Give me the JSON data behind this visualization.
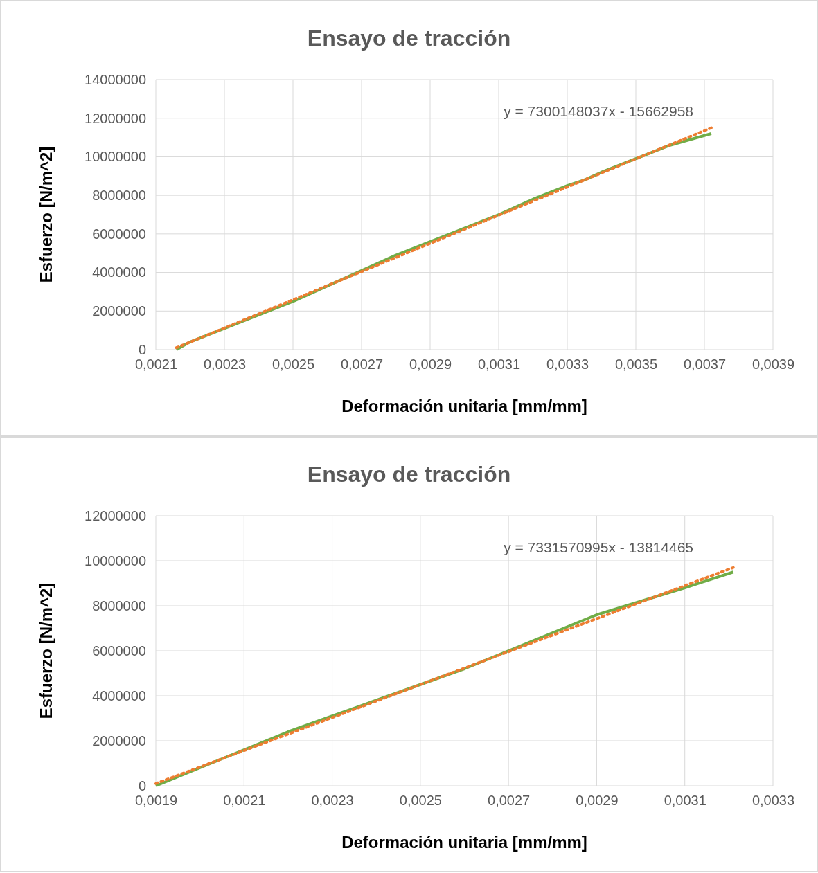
{
  "chart_data": [
    {
      "type": "line",
      "title": "Ensayo de tracción",
      "xlabel": "Deformación unitaria [mm/mm]",
      "ylabel": "Esfuerzo [N/m^2]",
      "xlim": [
        0.0021,
        0.0039
      ],
      "xticks": [
        {
          "value": 0.0021,
          "label": "0,0021"
        },
        {
          "value": 0.0023,
          "label": "0,0023"
        },
        {
          "value": 0.0025,
          "label": "0,0025"
        },
        {
          "value": 0.0027,
          "label": "0,0027"
        },
        {
          "value": 0.0029,
          "label": "0,0029"
        },
        {
          "value": 0.0031,
          "label": "0,0031"
        },
        {
          "value": 0.0033,
          "label": "0,0033"
        },
        {
          "value": 0.0035,
          "label": "0,0035"
        },
        {
          "value": 0.0037,
          "label": "0,0037"
        },
        {
          "value": 0.0039,
          "label": "0,0039"
        }
      ],
      "ylim": [
        0,
        14000000
      ],
      "yticks": [
        0,
        2000000,
        4000000,
        6000000,
        8000000,
        10000000,
        12000000,
        14000000
      ],
      "grid": true,
      "annotations": [
        "y = 7300148037x - 15662958"
      ],
      "series": [
        {
          "color": "#70ad47",
          "line_style": "solid",
          "x": [
            0.00216,
            0.0022,
            0.0023,
            0.0024,
            0.0025,
            0.0026,
            0.0027,
            0.0028,
            0.0029,
            0.003,
            0.0031,
            0.0032,
            0.0033,
            0.00335,
            0.0034,
            0.0035,
            0.0036,
            0.0037,
            0.00372
          ],
          "values": [
            0,
            400000,
            1100000,
            1800000,
            2500000,
            3300000,
            4100000,
            4900000,
            5600000,
            6300000,
            7000000,
            7800000,
            8500000,
            8800000,
            9200000,
            9900000,
            10600000,
            11100000,
            11200000
          ]
        },
        {
          "color": "#ed7d31",
          "line_style": "dotted",
          "x": [
            0.00216,
            0.00372
          ],
          "values": [
            100000,
            11500000
          ]
        }
      ]
    },
    {
      "type": "line",
      "title": "Ensayo de tracción",
      "xlabel": "Deformación unitaria [mm/mm]",
      "ylabel": "Esfuerzo [N/m^2]",
      "xlim": [
        0.0019,
        0.0033
      ],
      "xticks": [
        {
          "value": 0.0019,
          "label": "0,0019"
        },
        {
          "value": 0.0021,
          "label": "0,0021"
        },
        {
          "value": 0.0023,
          "label": "0,0023"
        },
        {
          "value": 0.0025,
          "label": "0,0025"
        },
        {
          "value": 0.0027,
          "label": "0,0027"
        },
        {
          "value": 0.0029,
          "label": "0,0029"
        },
        {
          "value": 0.0031,
          "label": "0,0031"
        },
        {
          "value": 0.0033,
          "label": "0,0033"
        }
      ],
      "ylim": [
        0,
        12000000
      ],
      "yticks": [
        0,
        2000000,
        4000000,
        6000000,
        8000000,
        10000000,
        12000000
      ],
      "grid": true,
      "annotations": [
        "y = 7331570995x - 13814465"
      ],
      "series": [
        {
          "color": "#70ad47",
          "line_style": "solid",
          "x": [
            0.0019,
            0.002,
            0.0021,
            0.0022,
            0.0023,
            0.0024,
            0.0025,
            0.0026,
            0.0027,
            0.0028,
            0.0029,
            0.003,
            0.0031,
            0.00321
          ],
          "values": [
            0,
            800000,
            1600000,
            2400000,
            3100000,
            3800000,
            4500000,
            5200000,
            6000000,
            6800000,
            7600000,
            8200000,
            8800000,
            9500000
          ]
        },
        {
          "color": "#ed7d31",
          "line_style": "dotted",
          "x": [
            0.0019,
            0.00321
          ],
          "values": [
            100000,
            9700000
          ]
        }
      ]
    }
  ]
}
